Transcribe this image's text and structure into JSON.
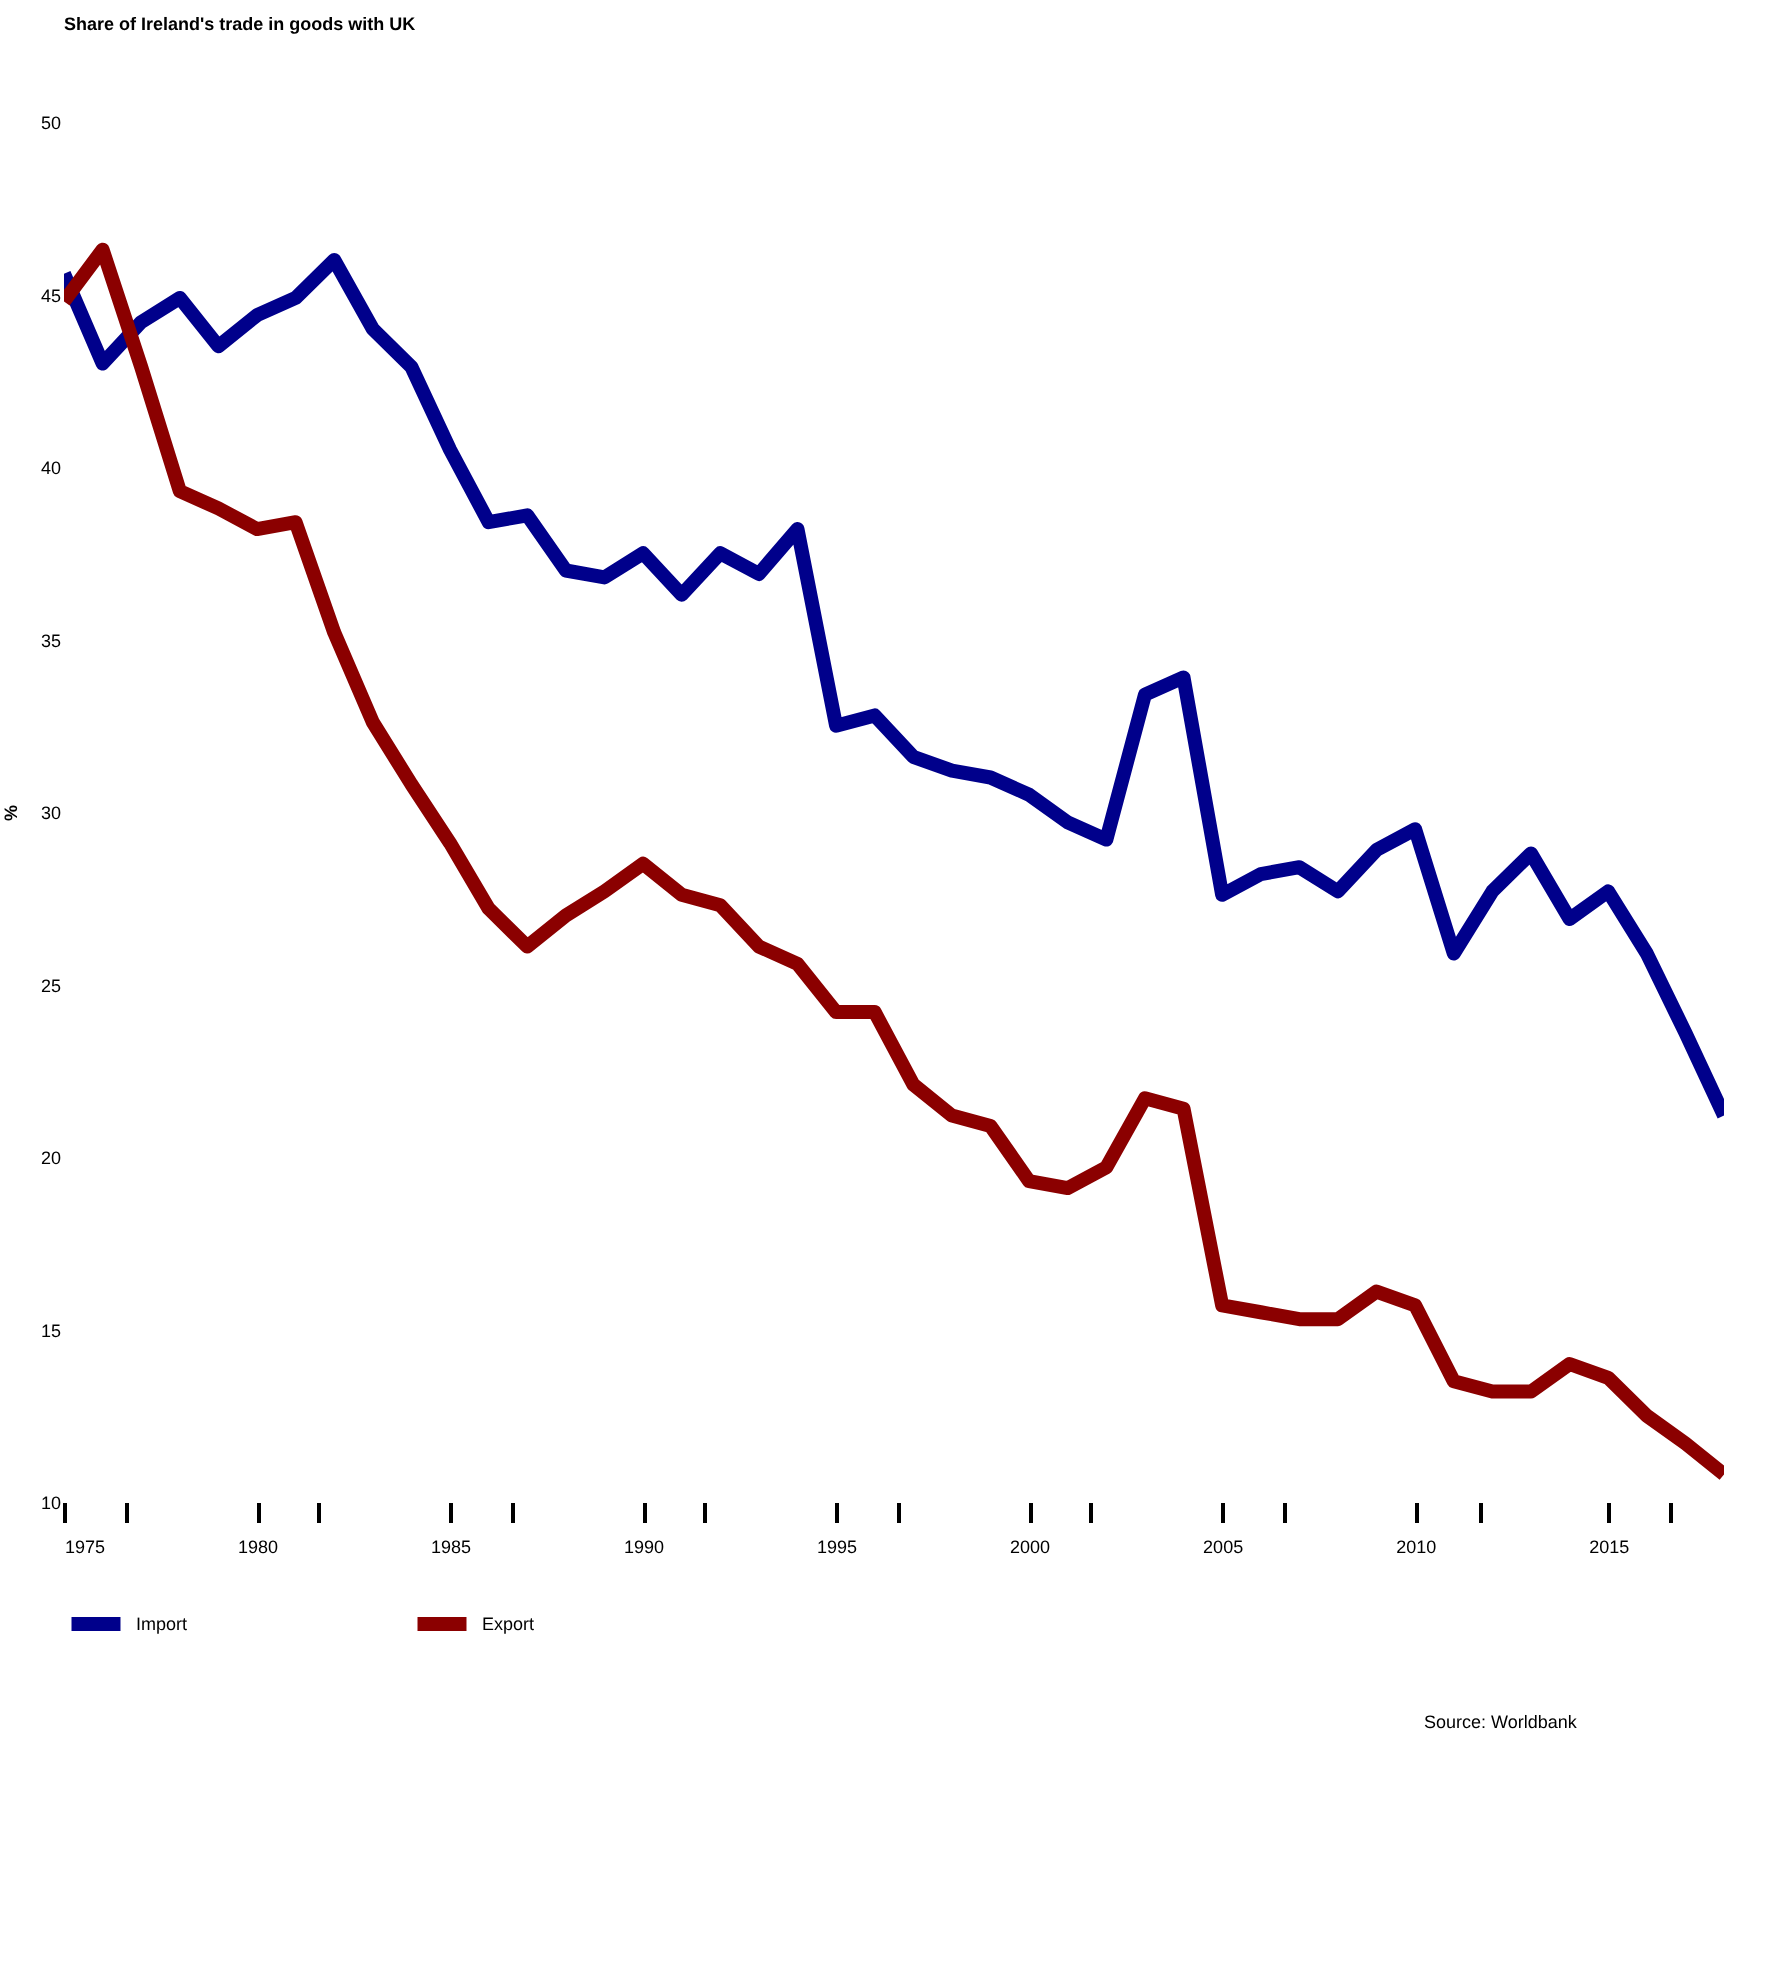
{
  "chart_data": {
    "type": "line",
    "title": "Share of Ireland's trade in goods with UK",
    "ylabel": "%",
    "x": [
      1975,
      1976,
      1977,
      1978,
      1979,
      1980,
      1981,
      1982,
      1983,
      1984,
      1985,
      1986,
      1987,
      1988,
      1989,
      1990,
      1991,
      1992,
      1993,
      1994,
      1995,
      1996,
      1997,
      1998,
      1999,
      2000,
      2001,
      2002,
      2003,
      2004,
      2005,
      2006,
      2007,
      2008,
      2009,
      2010,
      2011,
      2012,
      2013,
      2014,
      2015,
      2016,
      2017,
      2018
    ],
    "series": [
      {
        "name": "Import",
        "color": "#00008b",
        "values": [
          45.6,
          43.0,
          44.2,
          44.9,
          43.5,
          44.4,
          44.9,
          46.0,
          44.0,
          42.9,
          40.5,
          38.4,
          38.6,
          37.0,
          36.8,
          37.5,
          36.3,
          37.5,
          36.9,
          38.2,
          32.5,
          32.8,
          31.6,
          31.2,
          31.0,
          30.5,
          29.7,
          29.2,
          33.4,
          33.9,
          27.6,
          28.2,
          28.4,
          27.7,
          28.9,
          29.5,
          25.9,
          27.7,
          28.8,
          26.9,
          27.7,
          25.9,
          23.6,
          21.2
        ]
      },
      {
        "name": "Export",
        "color": "#8b0000",
        "values": [
          44.8,
          46.3,
          42.9,
          39.3,
          38.8,
          38.2,
          38.4,
          35.2,
          32.6,
          30.8,
          29.1,
          27.2,
          26.1,
          27.0,
          27.7,
          28.5,
          27.6,
          27.3,
          26.1,
          25.6,
          24.2,
          24.2,
          22.1,
          21.2,
          20.9,
          19.3,
          19.1,
          19.7,
          21.7,
          21.4,
          15.7,
          15.5,
          15.3,
          15.3,
          16.1,
          15.7,
          13.5,
          13.2,
          13.2,
          14.0,
          13.6,
          12.5,
          11.7,
          10.8
        ]
      }
    ],
    "xlim": [
      1975,
      2018
    ],
    "xticks": [
      1975,
      {
        "value": 1976.6,
        "label": null
      },
      1980,
      {
        "value": 1981.6,
        "label": null
      },
      1985,
      {
        "value": 1986.6,
        "label": null
      },
      1990,
      {
        "value": 1991.6,
        "label": null
      },
      1995,
      {
        "value": 1996.6,
        "label": null
      },
      2000,
      {
        "value": 2001.6,
        "label": null
      },
      2005,
      {
        "value": 2006.6,
        "label": null
      },
      2010,
      {
        "value": 2011.7,
        "label": null
      },
      2015,
      {
        "value": 2016.6,
        "label": null
      }
    ],
    "ylim": [
      10,
      50
    ],
    "yticks": [
      10,
      15,
      20,
      25,
      30,
      35,
      40,
      45,
      50
    ],
    "grid": false,
    "legend": "bottom",
    "line_style": "solid",
    "marker": "none",
    "annotations": [
      "Source: Worldbank"
    ]
  }
}
